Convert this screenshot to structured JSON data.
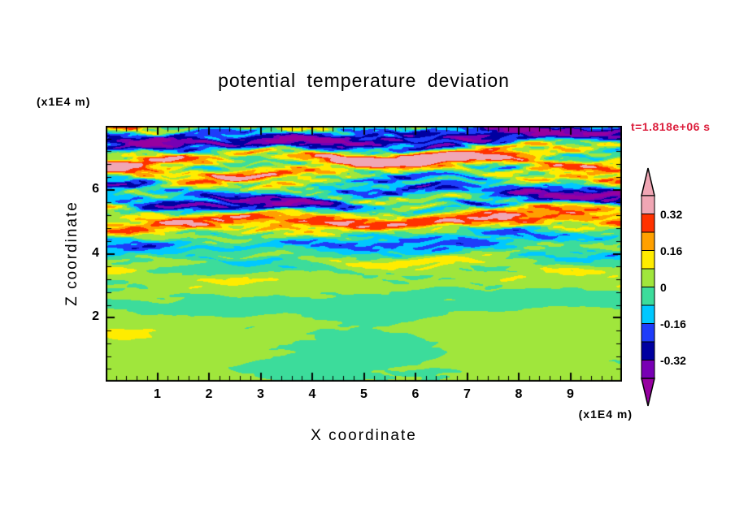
{
  "page": {
    "background": "#FFFFFF"
  },
  "chart_data": {
    "type": "heatmap",
    "title": "potential temperature deviation",
    "xlabel": "X coordinate",
    "ylabel": "Z coordinate",
    "x_unit": "(x1E4 m)",
    "z_unit": "(x1E4 m)",
    "time_label": "t=1.818e+06 s",
    "time_color": "#DC1E3C",
    "x_range": [
      0,
      10
    ],
    "z_range": [
      0,
      8
    ],
    "x_major_ticks": [
      1,
      2,
      3,
      4,
      5,
      6,
      7,
      8,
      9
    ],
    "x_minor_step": 0.2,
    "z_major_ticks": [
      2,
      4,
      6
    ],
    "z_minor_step": 0.4,
    "levels": {
      "min": -0.4,
      "max": 0.4,
      "step": 0.08
    },
    "colors_low_to_high": [
      "#7800B4",
      "#0000A0",
      "#1E3CFA",
      "#00C8FF",
      "#3CDC9B",
      "#A0E63C",
      "#FFEC00",
      "#FFA000",
      "#FF3200",
      "#F0A6B4"
    ],
    "below_color": "#9600A0",
    "above_color": "#F0A6B4",
    "colorbar_labels": [
      {
        "value": 0.32,
        "text": "0.32"
      },
      {
        "value": 0.16,
        "text": "0.16"
      },
      {
        "value": 0,
        "text": "0"
      },
      {
        "value": -0.16,
        "text": "-0.16"
      },
      {
        "value": -0.32,
        "text": "-0.32"
      }
    ],
    "field": {
      "description": "Horizontally banded potential temperature deviation field from a stratified atmosphere simulation: large-amplitude wave bands (pink |dev|>0.32 alternating with purple/navy dev<-0.24) above z~5e4 m, thin alternating streaks (yellow/orange/red vs cyan/blue) between z~2e4 m and 5e4 m, and smooth near-zero green blobs (|dev|<0.08, chartreuse vs spring-green) below z~2e4 m.",
      "envelope": {
        "base": 0.05,
        "amp": 0.93,
        "z0": 4.4,
        "w": 0.75
      },
      "gain": 0.52,
      "modes": [
        {
          "a": 0.5,
          "kz": 0.58,
          "kx": 0.015,
          "ph": 1.7,
          "wob": 0.9,
          "wx": 0.09,
          "wph": 0.4
        },
        {
          "a": 0.32,
          "kz": 0.95,
          "kx": -0.03,
          "ph": 4.2,
          "wob": 1.3,
          "wx": 0.16,
          "wph": 2.1
        },
        {
          "a": 0.2,
          "kz": 1.55,
          "kx": 0.05,
          "ph": 0.8,
          "wob": 1.6,
          "wx": 0.27,
          "wph": 5.0
        },
        {
          "a": 0.14,
          "kz": 2.45,
          "kx": -0.07,
          "ph": 3.3,
          "wob": 2.0,
          "wx": 0.4,
          "wph": 1.2
        },
        {
          "a": 0.1,
          "kz": 3.6,
          "kx": 0.1,
          "ph": 5.6,
          "wob": 2.4,
          "wx": 0.62,
          "wph": 3.9
        },
        {
          "a": 0.07,
          "kz": 5.2,
          "kx": -0.13,
          "ph": 2.2,
          "wob": 2.8,
          "wx": 0.85,
          "wph": 0.7
        }
      ],
      "bottom": {
        "z0": 2.1,
        "w": 0.45,
        "offset": 0.012,
        "blobs": [
          {
            "a": 0.05,
            "kx": 0.13,
            "p1": 0.9,
            "kz": 0.14,
            "p2": 0.5
          },
          {
            "a": 0.025,
            "kx": 0.31,
            "p1": 4.0,
            "kz": 0.21,
            "p2": 2.3
          }
        ]
      }
    }
  }
}
